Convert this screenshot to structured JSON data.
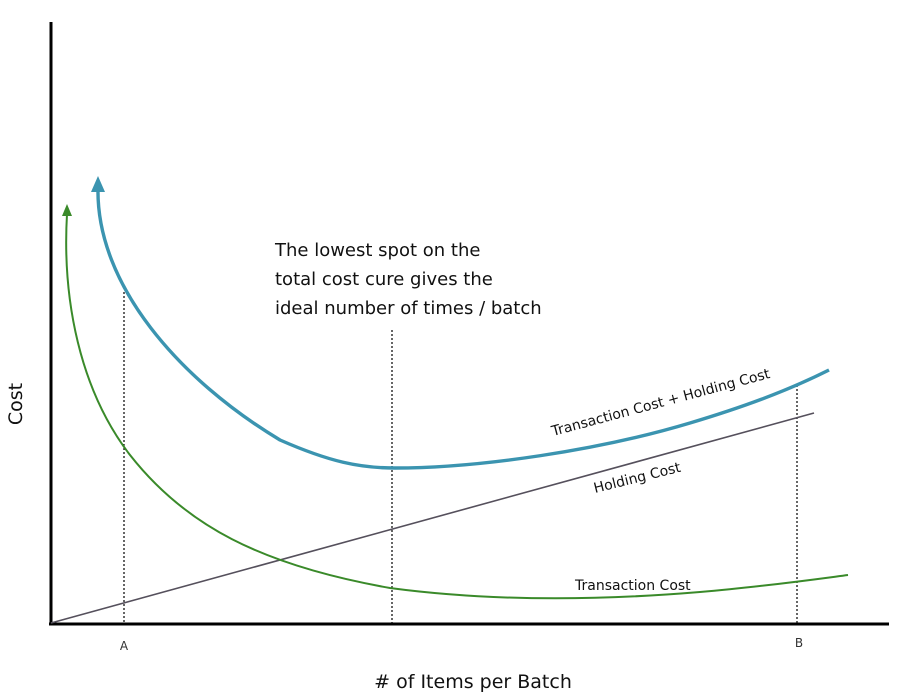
{
  "chart_data": {
    "type": "line",
    "xlabel": "# of Items per Batch",
    "ylabel": "Cost",
    "annotation": [
      "The lowest spot on the",
      "total cost cure gives the",
      "ideal number of times / batch"
    ],
    "x_markers": [
      "A",
      "B"
    ],
    "series": [
      {
        "name": "Transaction Cost + Holding Cost",
        "color": "#3b94b0",
        "x": [
          0.06,
          0.1,
          0.15,
          0.2,
          0.25,
          0.3,
          0.35,
          0.4,
          0.45,
          0.5,
          0.55,
          0.6,
          0.65,
          0.7,
          0.75,
          0.8,
          0.85,
          0.9,
          0.95
        ],
        "values": [
          1.0,
          0.78,
          0.55,
          0.43,
          0.37,
          0.34,
          0.33,
          0.32,
          0.32,
          0.33,
          0.34,
          0.36,
          0.38,
          0.41,
          0.44,
          0.48,
          0.51,
          0.55,
          0.58
        ]
      },
      {
        "name": "Holding Cost",
        "color": "#55505c",
        "x": [
          0.0,
          0.9
        ],
        "values": [
          0.0,
          0.47
        ]
      },
      {
        "name": "Transaction Cost",
        "color": "#3a8a2a",
        "x": [
          0.02,
          0.05,
          0.08,
          0.12,
          0.16,
          0.2,
          0.25,
          0.3,
          0.35,
          0.4,
          0.5,
          0.6,
          0.7,
          0.8,
          0.9,
          0.95
        ],
        "values": [
          0.92,
          0.62,
          0.45,
          0.33,
          0.25,
          0.2,
          0.15,
          0.11,
          0.08,
          0.06,
          0.05,
          0.05,
          0.06,
          0.07,
          0.09,
          0.1
        ]
      }
    ],
    "grid": false
  }
}
